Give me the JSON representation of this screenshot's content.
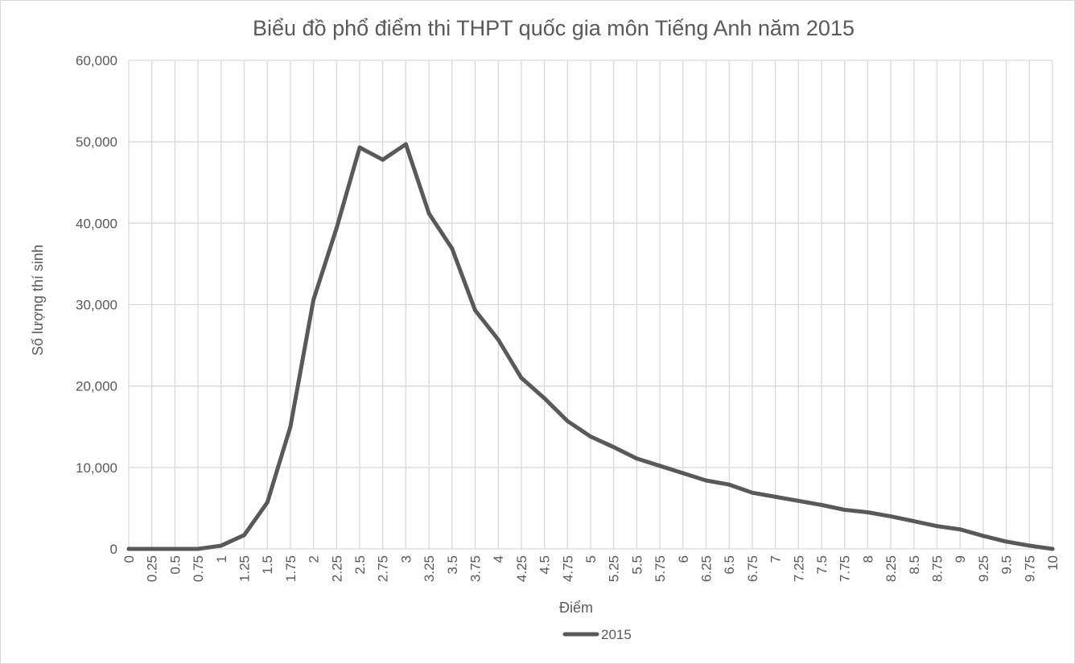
{
  "chart_data": {
    "type": "line",
    "title": "Biểu đồ phổ điểm thi THPT quốc gia môn Tiếng Anh năm 2015",
    "xlabel": "Điểm",
    "ylabel": "Số lượng thí sinh",
    "categories": [
      "0",
      "0.25",
      "0.5",
      "0.75",
      "1",
      "1.25",
      "1.5",
      "1.75",
      "2",
      "2.25",
      "2.5",
      "2.75",
      "3",
      "3.25",
      "3.5",
      "3.75",
      "4",
      "4.25",
      "4.5",
      "4.75",
      "5",
      "5.25",
      "5.5",
      "5.75",
      "6",
      "6.25",
      "6.5",
      "6.75",
      "7",
      "7.25",
      "7.5",
      "7.75",
      "8",
      "8.25",
      "8.5",
      "8.75",
      "9",
      "9.25",
      "9.5",
      "9.75",
      "10"
    ],
    "series": [
      {
        "name": "2015",
        "color": "#595959",
        "values": [
          0,
          0,
          0,
          0,
          400,
          1700,
          5700,
          15000,
          30600,
          39400,
          49300,
          47800,
          49700,
          41200,
          36900,
          29300,
          25700,
          21000,
          18500,
          15700,
          13800,
          12500,
          11100,
          10200,
          9300,
          8400,
          7900,
          6900,
          6400,
          5900,
          5400,
          4800,
          4500,
          4000,
          3400,
          2800,
          2400,
          1600,
          900,
          400,
          0
        ]
      }
    ],
    "ylim": [
      0,
      60000
    ],
    "yticks": [
      "0",
      "10,000",
      "20,000",
      "30,000",
      "40,000",
      "50,000",
      "60,000"
    ],
    "grid": true,
    "legend": "bottom"
  }
}
